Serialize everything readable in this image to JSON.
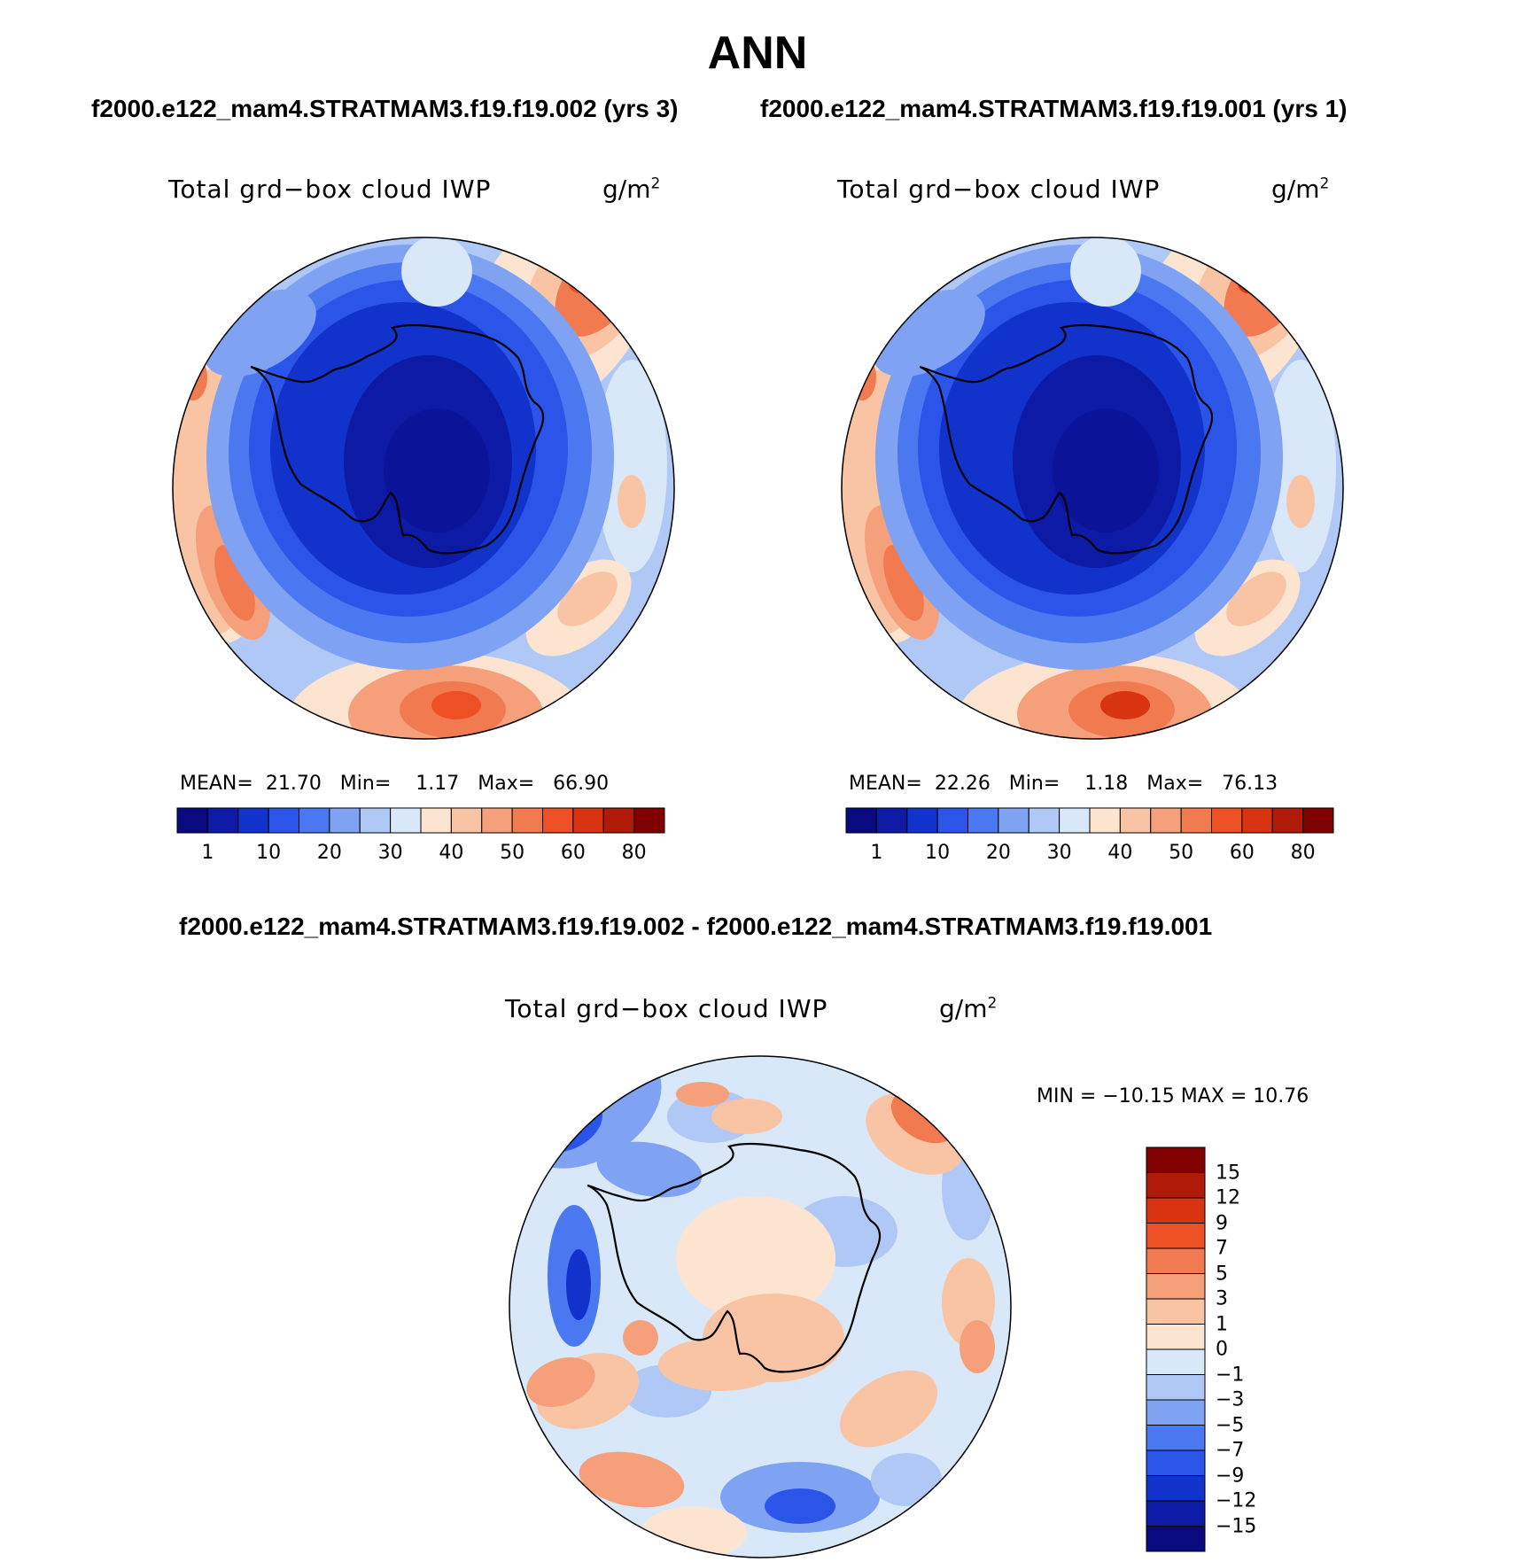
{
  "figure": {
    "title": "ANN",
    "top_caption_left": "f2000.e122_mam4.STRATMAM3.f19.f19.002 (yrs 3)",
    "top_caption_right": "f2000.e122_mam4.STRATMAM3.f19.f19.001 (yrs 1)",
    "diff_caption": "f2000.e122_mam4.STRATMAM3.f19.f19.002 - f2000.e122_mam4.STRATMAM3.f19.f19.001"
  },
  "panels": [
    {
      "variable": "Total grd−box cloud IWP",
      "units_base": "g/m",
      "units_exp": "2",
      "stats": {
        "mean_label": "MEAN=",
        "mean": "21.70",
        "min_label": "Min=",
        "min": "1.17",
        "max_label": "Max=",
        "max": "66.90"
      }
    },
    {
      "variable": "Total grd−box cloud IWP",
      "units_base": "g/m",
      "units_exp": "2",
      "stats": {
        "mean_label": "MEAN=",
        "mean": "22.26",
        "min_label": "Min=",
        "min": "1.18",
        "max_label": "Max=",
        "max": "76.13"
      }
    },
    {
      "variable": "Total grd−box cloud IWP",
      "units_base": "g/m",
      "units_exp": "2",
      "minmax": "MIN = −10.15 MAX =   10.76"
    }
  ],
  "colorbar_abs": {
    "colors": [
      "#0a0a80",
      "#0d1aa6",
      "#1133cc",
      "#2a55e8",
      "#4a78f0",
      "#7fa2f2",
      "#b0c8f5",
      "#d8e8f8",
      "#fde4d0",
      "#f8c4a4",
      "#f5a07a",
      "#f27a50",
      "#ec5024",
      "#d83412",
      "#b01a08",
      "#800000"
    ],
    "labels": [
      "1",
      "10",
      "20",
      "30",
      "40",
      "50",
      "60",
      "80"
    ]
  },
  "colorbar_diff": {
    "colors": [
      "#0a0a80",
      "#0d1aa6",
      "#1133cc",
      "#2a55e8",
      "#4a78f0",
      "#7fa2f2",
      "#b0c8f5",
      "#d8e8f8",
      "#fde4d0",
      "#f8c4a4",
      "#f5a07a",
      "#f27a50",
      "#ec5024",
      "#d83412",
      "#b01a08",
      "#800000"
    ],
    "labels": [
      "15",
      "12",
      "9",
      "7",
      "5",
      "3",
      "1",
      "0",
      "−1",
      "−3",
      "−5",
      "−7",
      "−9",
      "−12",
      "−15"
    ]
  },
  "map_fills": {
    "ocean_base_abs": "#7fa2f2",
    "antarctic_core": "#0d1aa6",
    "diff_base": "#d8e8f8",
    "coastline": "#000000"
  }
}
